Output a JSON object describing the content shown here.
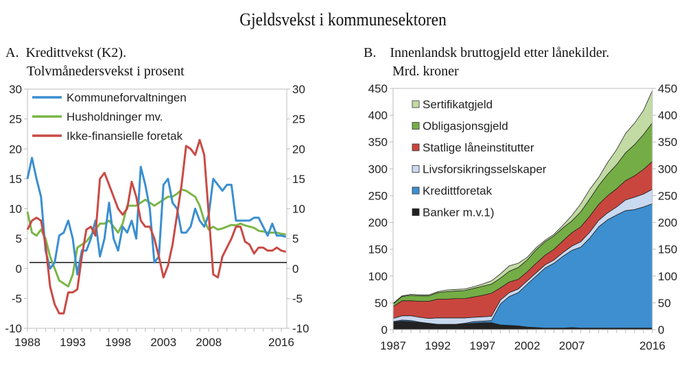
{
  "title": "Gjeldsvekst i kommunesektoren",
  "panel_a": {
    "letter": "A.",
    "line1": "Kredittvekst (K2).",
    "line2": "Tolvmånedersvekst i prosent"
  },
  "panel_b": {
    "letter": "B.",
    "line1": "Innenlandsk bruttogjeld etter lånekilder.",
    "line2": "Mrd. kroner"
  },
  "chart_data": [
    {
      "type": "line",
      "title": "Kredittvekst (K2). Tolvmånedersvekst i prosent",
      "ylim": [
        -10,
        30
      ],
      "yticks": [
        -10,
        -5,
        0,
        5,
        10,
        15,
        20,
        25,
        30
      ],
      "xlim": [
        1988,
        2016.6
      ],
      "xticks": [
        "1988",
        "1993",
        "1998",
        "2003",
        "2008",
        "2016"
      ],
      "xtick_values": [
        1988,
        1993,
        1998,
        2003,
        2008,
        2016
      ],
      "dual_y_axis": true,
      "reference_line": 1,
      "legend": "top-left",
      "x": [
        1988,
        1988.5,
        1989,
        1989.5,
        1990,
        1990.5,
        1991,
        1991.5,
        1992,
        1992.5,
        1993,
        1993.5,
        1994,
        1994.5,
        1995,
        1995.5,
        1996,
        1996.5,
        1997,
        1997.5,
        1998,
        1998.5,
        1999,
        1999.5,
        2000,
        2000.5,
        2001,
        2001.5,
        2002,
        2002.5,
        2003,
        2003.5,
        2004,
        2004.5,
        2005,
        2005.5,
        2006,
        2006.5,
        2007,
        2007.5,
        2008,
        2008.5,
        2009,
        2009.5,
        2010,
        2010.5,
        2011,
        2011.5,
        2012,
        2012.5,
        2013,
        2013.5,
        2014,
        2014.5,
        2015,
        2015.5,
        2016,
        2016.5
      ],
      "series": [
        {
          "name": "Kommuneforvaltningen",
          "color": "#3a8fd1",
          "values": [
            15,
            18.5,
            15,
            12,
            3,
            0,
            1,
            5.5,
            6,
            8,
            5,
            -1,
            3,
            3,
            5,
            8,
            2,
            5,
            11,
            5,
            3,
            7,
            6,
            8,
            5,
            17,
            14,
            10,
            1,
            2,
            14,
            15,
            11,
            10,
            6,
            6,
            7,
            10,
            8,
            7,
            9,
            15,
            14,
            13,
            14,
            14,
            8,
            8,
            8,
            8,
            8.5,
            8.5,
            7,
            5.5,
            7.5,
            5.5,
            5.5,
            5.3
          ]
        },
        {
          "name": "Husholdninger mv.",
          "color": "#7ab648",
          "values": [
            9.5,
            6,
            5.5,
            6.5,
            5,
            2,
            0,
            -2,
            -2.5,
            -3,
            -1,
            3.5,
            4,
            4.5,
            5.5,
            6.5,
            7.5,
            7.5,
            8,
            7,
            6,
            7.5,
            10.5,
            10.5,
            10.5,
            11,
            11.5,
            11,
            10.5,
            11,
            11.5,
            12,
            12,
            12.5,
            13.2,
            13,
            12.5,
            12,
            10.5,
            8,
            6.5,
            7,
            6.5,
            6.7,
            7,
            7.3,
            7.2,
            7.5,
            7.2,
            7,
            6.8,
            6.3,
            6.2,
            6,
            6,
            6,
            5.8,
            5.7
          ]
        },
        {
          "name": "Ikke-finansielle foretak",
          "color": "#c94a45",
          "values": [
            6.5,
            8,
            8.5,
            8,
            4,
            -3,
            -6,
            -7.5,
            -7.5,
            -4,
            -4,
            -3.5,
            2,
            6.5,
            7,
            5.5,
            15,
            16,
            14,
            12,
            10,
            9,
            10,
            14.5,
            12,
            8,
            7,
            7,
            5,
            2,
            -1.5,
            0.5,
            4,
            9,
            14,
            20.5,
            20,
            19,
            21.5,
            19,
            9,
            -1,
            -1.5,
            2,
            3.5,
            5,
            7,
            7,
            4.5,
            4,
            2.5,
            3.5,
            3.5,
            3,
            3,
            3.5,
            3,
            2.8
          ]
        }
      ]
    },
    {
      "type": "area",
      "stacked": true,
      "title": "Innenlandsk bruttogjeld etter lånekilder. Mrd. kroner",
      "ylim": [
        0,
        450
      ],
      "yticks": [
        0,
        50,
        100,
        150,
        200,
        250,
        300,
        350,
        400,
        450
      ],
      "xlim": [
        1987,
        2016
      ],
      "xticks": [
        "1987",
        "1992",
        "1997",
        "2002",
        "2007",
        "2016"
      ],
      "xtick_values": [
        1987,
        1992,
        1997,
        2002,
        2007,
        2016
      ],
      "dual_y_axis": true,
      "legend": "top-left",
      "x": [
        1987,
        1988,
        1989,
        1990,
        1991,
        1992,
        1993,
        1994,
        1995,
        1996,
        1997,
        1998,
        1999,
        2000,
        2001,
        2002,
        2003,
        2004,
        2005,
        2006,
        2007,
        2008,
        2009,
        2010,
        2011,
        2012,
        2013,
        2014,
        2015,
        2016
      ],
      "series": [
        {
          "name": "Banker m.v.1)",
          "color": "#222222",
          "values": [
            14,
            16,
            15,
            13,
            11,
            10,
            10,
            10,
            11,
            12,
            13,
            13,
            9,
            8,
            7,
            5,
            4,
            3,
            3,
            3,
            4,
            3,
            3,
            3,
            3,
            3,
            3,
            3,
            3,
            3
          ]
        },
        {
          "name": "Kredittforetak",
          "color": "#3d8fd0",
          "values": [
            1,
            2,
            2,
            1,
            1,
            0,
            0,
            0,
            1,
            3,
            3,
            4,
            39,
            54,
            62,
            80,
            96,
            112,
            121,
            134,
            144,
            151,
            168,
            189,
            202,
            211,
            219,
            221,
            226,
            232
          ]
        },
        {
          "name": "Livsforsikringsselskaper",
          "color": "#c9d9f0",
          "values": [
            6,
            8,
            9,
            9,
            9,
            12,
            12,
            12,
            10,
            8,
            8,
            8,
            7,
            7,
            7,
            6,
            6,
            6,
            6,
            7,
            8,
            10,
            11,
            12,
            13,
            15,
            20,
            23,
            24,
            27
          ]
        },
        {
          "name": "Statlige låneinstitutter",
          "color": "#c9463f",
          "values": [
            22,
            28,
            28,
            30,
            32,
            35,
            35,
            36,
            36,
            38,
            40,
            43,
            23,
            20,
            18,
            17,
            18,
            18,
            20,
            22,
            25,
            28,
            30,
            30,
            32,
            34,
            36,
            40,
            46,
            52
          ]
        },
        {
          "name": "Obligasjonsgjeld",
          "color": "#74ad45",
          "values": [
            5,
            8,
            10,
            10,
            10,
            12,
            14,
            14,
            15,
            16,
            17,
            17,
            18,
            20,
            22,
            22,
            25,
            25,
            25,
            24,
            22,
            28,
            32,
            35,
            40,
            45,
            52,
            58,
            65,
            72
          ]
        },
        {
          "name": "Sertifikatgjeld",
          "color": "#c2daa3",
          "values": [
            1,
            1,
            2,
            2,
            2,
            2,
            3,
            3,
            3,
            3,
            4,
            6,
            8,
            10,
            8,
            5,
            4,
            3,
            3,
            5,
            10,
            15,
            18,
            15,
            22,
            28,
            36,
            40,
            45,
            60
          ]
        }
      ]
    }
  ]
}
